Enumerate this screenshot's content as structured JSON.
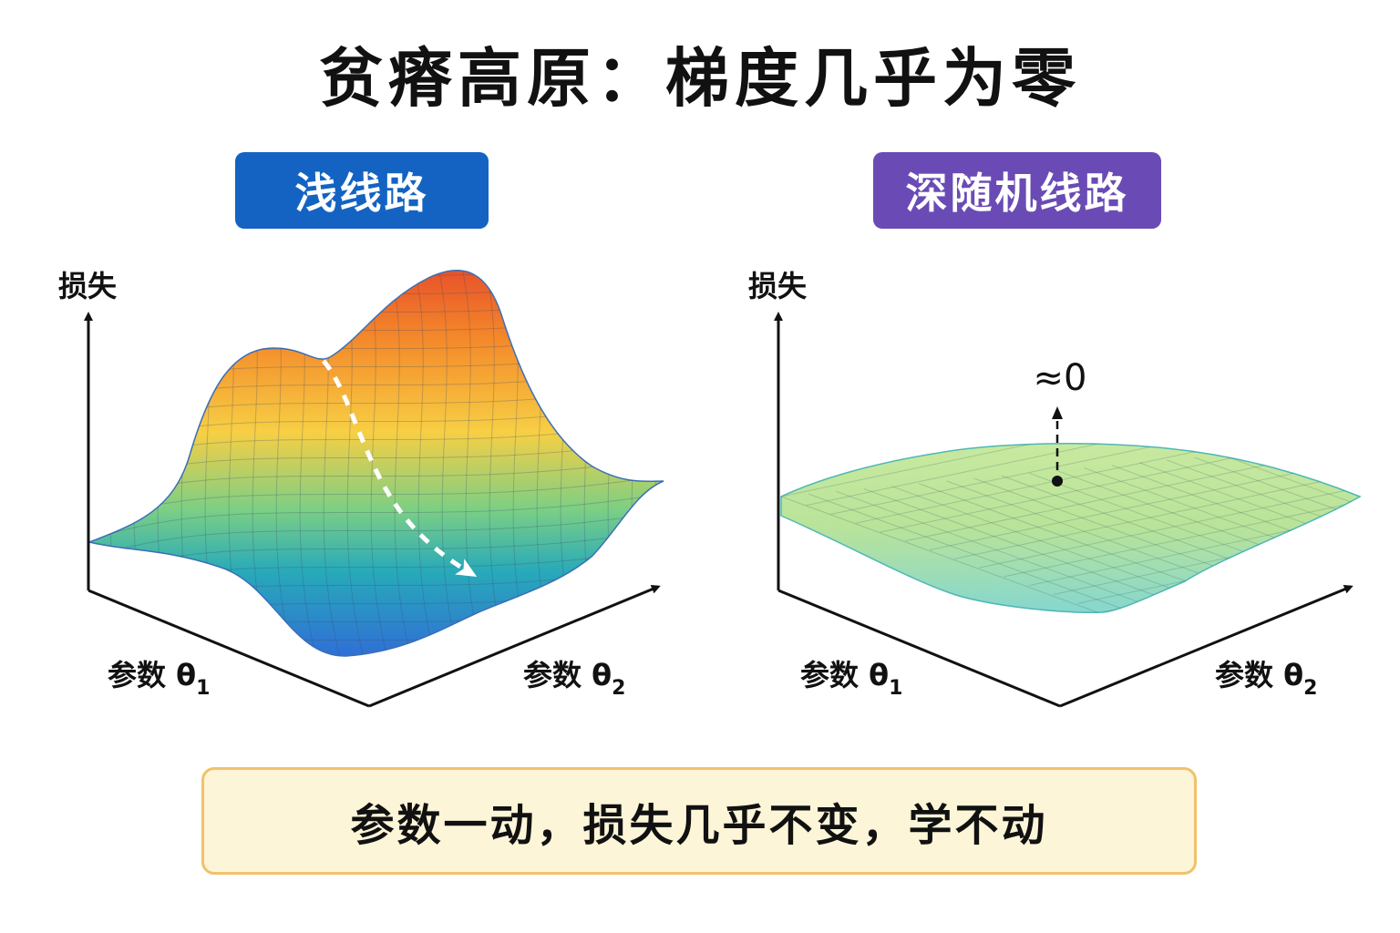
{
  "title": "贫瘠高原：梯度几乎为零",
  "colors": {
    "shallow_badge": "#1463c2",
    "deep_badge": "#6a4bb5",
    "callout_bg": "#fdf5d8",
    "callout_border": "#f1c16b",
    "surface_high": "#e8522a",
    "surface_mid": "#f7cf44",
    "surface_low": "#2f6fd6",
    "plateau": "#b9e39a"
  },
  "panels": {
    "shallow": {
      "label": "浅线路",
      "y_axis": "损失",
      "x_axis_1": "参数 θ",
      "x_axis_1_sub": "1",
      "x_axis_2": "参数 θ",
      "x_axis_2_sub": "2"
    },
    "deep": {
      "label": "深随机线路",
      "y_axis": "损失",
      "x_axis_1": "参数 θ",
      "x_axis_1_sub": "1",
      "x_axis_2": "参数 θ",
      "x_axis_2_sub": "2",
      "annotation": "≈0"
    }
  },
  "callout": "参数一动，损失几乎不变，学不动"
}
